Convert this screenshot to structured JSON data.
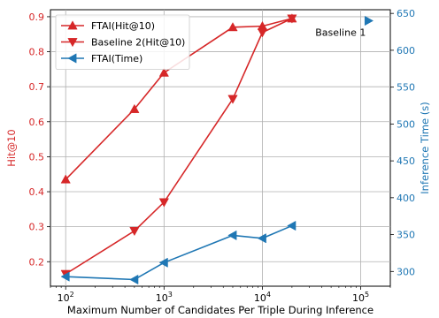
{
  "chart_data": {
    "type": "line",
    "x": [
      100,
      500,
      1000,
      5000,
      10000,
      20000
    ],
    "xlabel": "Maximum Number of Candidates Per Triple During Inference",
    "xscale": "log",
    "xlim": [
      70,
      200000
    ],
    "xticks": [
      {
        "value": 100,
        "base": "10",
        "exp": "2"
      },
      {
        "value": 1000,
        "base": "10",
        "exp": "3"
      },
      {
        "value": 10000,
        "base": "10",
        "exp": "4"
      },
      {
        "value": 100000,
        "base": "10",
        "exp": "5"
      }
    ],
    "y_left": {
      "label": "Hit@10",
      "range": [
        0.13,
        0.92
      ],
      "ticks": [
        "0.2",
        "0.3",
        "0.4",
        "0.5",
        "0.6",
        "0.7",
        "0.8",
        "0.9"
      ],
      "color": "#d62728"
    },
    "y_right": {
      "label": "Inference Time (s)",
      "range": [
        280,
        655
      ],
      "ticks": [
        "300",
        "350",
        "400",
        "450",
        "500",
        "550",
        "600",
        "650"
      ],
      "color": "#1f77b4"
    },
    "grid": true,
    "legend": "top-left",
    "series": [
      {
        "name": "FTAI(Hit@10)",
        "axis": "left",
        "marker": "triangle-up",
        "color": "#d62728",
        "values": [
          0.435,
          0.636,
          0.74,
          0.87,
          0.873,
          0.895
        ]
      },
      {
        "name": "Baseline 2(Hit@10)",
        "axis": "left",
        "marker": "triangle-down",
        "color": "#d62728",
        "values": [
          0.165,
          0.288,
          0.37,
          0.665,
          0.855,
          0.895
        ]
      },
      {
        "name": "FTAI(Time)",
        "axis": "right",
        "marker": "triangle-left",
        "color": "#1f77b4",
        "values": [
          293,
          289,
          312,
          349,
          345,
          362
        ]
      }
    ],
    "annotations": [
      {
        "text": "Baseline 1",
        "x": 120000,
        "y_right": 640,
        "marker": "triangle-right",
        "color": "#1f77b4"
      }
    ]
  }
}
